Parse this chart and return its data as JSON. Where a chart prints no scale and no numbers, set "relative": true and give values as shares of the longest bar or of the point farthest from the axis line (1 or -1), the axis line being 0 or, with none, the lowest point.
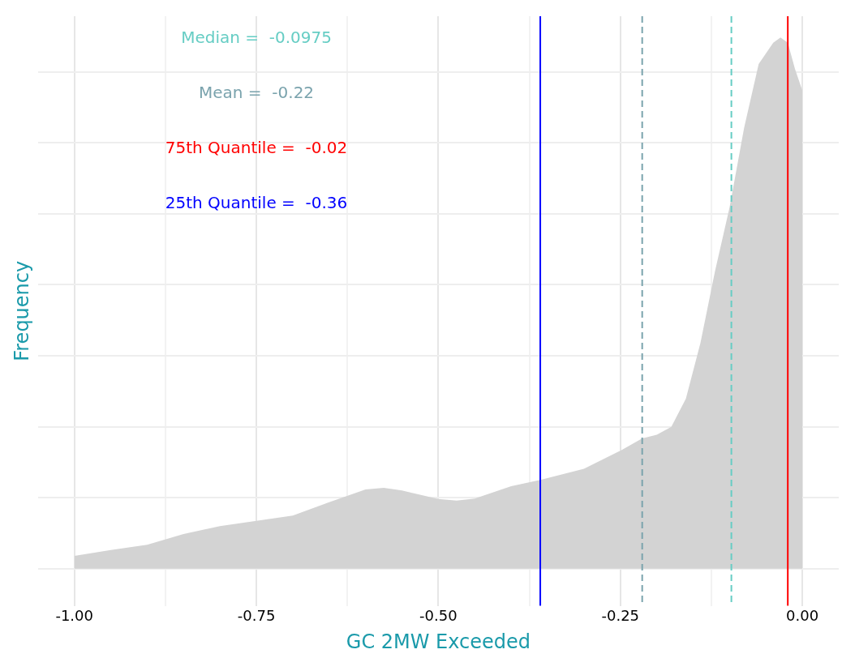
{
  "chart_data": {
    "type": "area",
    "relative": true,
    "xlabel": "GC 2MW Exceeded",
    "ylabel": "Frequency",
    "xlim": [
      -1.05,
      0.05
    ],
    "xticks": [
      {
        "value": -1,
        "label": "-1.00"
      },
      {
        "value": -0.875,
        "label": null
      },
      {
        "value": -0.75,
        "label": "-0.75"
      },
      {
        "value": -0.625,
        "label": null
      },
      {
        "value": -0.5,
        "label": "-0.50"
      },
      {
        "value": -0.375,
        "label": null
      },
      {
        "value": -0.25,
        "label": "-0.25"
      },
      {
        "value": -0.125,
        "label": null
      },
      {
        "value": 0,
        "label": "0.00"
      }
    ],
    "grid": true,
    "legend": false,
    "series": [
      {
        "color": "#d3d3d3",
        "x": [
          -1,
          -0.95,
          -0.9,
          -0.85,
          -0.8,
          -0.75,
          -0.7,
          -0.65,
          -0.6,
          -0.575,
          -0.55,
          -0.5,
          -0.475,
          -0.45,
          -0.4,
          -0.36,
          -0.3,
          -0.25,
          -0.22,
          -0.2,
          -0.18,
          -0.16,
          -0.14,
          -0.12,
          -0.1,
          -0.08,
          -0.06,
          -0.04,
          -0.03,
          -0.02,
          -0.01,
          0
        ],
        "values": [
          0.024,
          0.035,
          0.045,
          0.065,
          0.08,
          0.09,
          0.1,
          0.125,
          0.149,
          0.152,
          0.147,
          0.131,
          0.128,
          0.132,
          0.155,
          0.167,
          0.188,
          0.222,
          0.245,
          0.252,
          0.267,
          0.32,
          0.425,
          0.56,
          0.68,
          0.83,
          0.95,
          0.99,
          1,
          0.99,
          0.94,
          0.9
        ]
      }
    ],
    "ref_lines": [
      {
        "axis": "x",
        "value": -0.0975,
        "label": "Median =  -0.0975",
        "color": "#66cdc4",
        "line_style": "dashed"
      },
      {
        "axis": "x",
        "value": -0.22,
        "label": "Mean =  -0.22",
        "color": "#7aa3ad",
        "line_style": "dashed"
      },
      {
        "axis": "x",
        "value": -0.02,
        "label": "75th Quantile =  -0.02",
        "color": "#ff0000",
        "line_style": "solid"
      },
      {
        "axis": "x",
        "value": -0.36,
        "label": "25th Quantile =  -0.36",
        "color": "#0000ff",
        "line_style": "solid"
      }
    ]
  }
}
